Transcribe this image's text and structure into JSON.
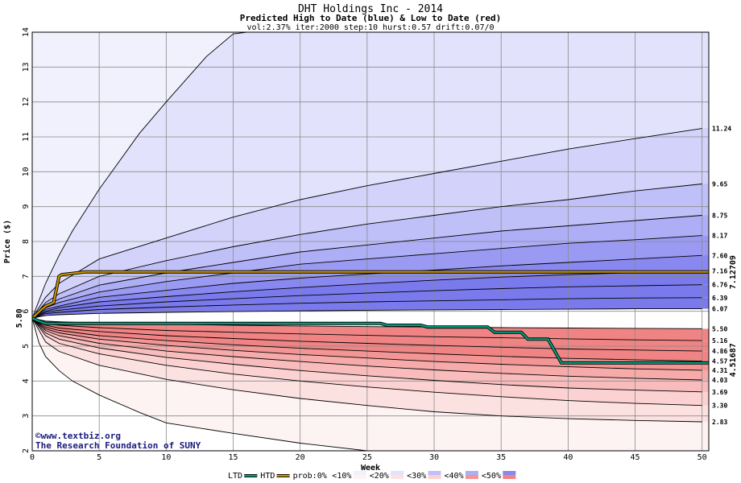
{
  "chart_data": {
    "type": "area",
    "title": "DHT Holdings Inc - 2014",
    "subtitle": "Predicted High to Date (blue) &  Low to Date (red)",
    "params": "vol:2.37% iter:2000 step:10 hurst:0.57 drift:0.07/0",
    "xlabel": "Week",
    "ylabel": "Price ($)",
    "xlim": [
      0,
      50.5
    ],
    "ylim": [
      2,
      14
    ],
    "xticks": [
      0,
      5,
      10,
      15,
      20,
      25,
      30,
      35,
      40,
      45,
      50
    ],
    "yticks": [
      2,
      3,
      4,
      5,
      6,
      7,
      8,
      9,
      10,
      11,
      12,
      13,
      14
    ],
    "start_price_label": "5.80",
    "start_price": 5.8,
    "grid": true,
    "upper_band_colors": [
      "#f1f1fd",
      "#e2e2fc",
      "#d2d2fb",
      "#c0c0f8",
      "#aeaef6",
      "#9a9af3",
      "#8888f0",
      "#7a7aec"
    ],
    "lower_band_colors": [
      "#fdf3f3",
      "#fce1e1",
      "#fbd1d1",
      "#f8bcbc",
      "#f6aaaa",
      "#f39595",
      "#f08484"
    ],
    "quantile_curves_upper": [
      {
        "label": "",
        "x": [
          0,
          1,
          2,
          3,
          5,
          8,
          10,
          13,
          15,
          16
        ],
        "y": [
          5.8,
          6.8,
          7.6,
          8.3,
          9.5,
          11.1,
          12.0,
          13.3,
          13.95,
          14
        ]
      },
      {
        "label": "11.24",
        "x": [
          0,
          1,
          2,
          5,
          10,
          15,
          20,
          25,
          30,
          35,
          40,
          45,
          50
        ],
        "y": [
          5.8,
          6.4,
          6.8,
          7.5,
          8.1,
          8.7,
          9.2,
          9.6,
          9.95,
          10.3,
          10.65,
          10.95,
          11.24
        ]
      },
      {
        "label": "9.65",
        "x": [
          0,
          1,
          2,
          5,
          10,
          15,
          20,
          25,
          30,
          35,
          40,
          45,
          50
        ],
        "y": [
          5.8,
          6.25,
          6.5,
          7.0,
          7.45,
          7.85,
          8.2,
          8.5,
          8.75,
          9.0,
          9.2,
          9.45,
          9.65
        ]
      },
      {
        "label": "8.75",
        "x": [
          0,
          1,
          2,
          5,
          10,
          15,
          20,
          25,
          30,
          35,
          40,
          45,
          50
        ],
        "y": [
          5.8,
          6.15,
          6.35,
          6.75,
          7.1,
          7.4,
          7.7,
          7.9,
          8.1,
          8.3,
          8.45,
          8.6,
          8.75
        ]
      },
      {
        "label": "8.17",
        "x": [
          0,
          1,
          2,
          5,
          10,
          15,
          20,
          25,
          30,
          35,
          40,
          45,
          50
        ],
        "y": [
          5.8,
          6.1,
          6.25,
          6.55,
          6.85,
          7.1,
          7.35,
          7.5,
          7.65,
          7.8,
          7.95,
          8.05,
          8.17
        ]
      },
      {
        "label": "7.60",
        "x": [
          0,
          1,
          2,
          5,
          10,
          15,
          20,
          25,
          30,
          35,
          40,
          45,
          50
        ],
        "y": [
          5.8,
          6.05,
          6.15,
          6.4,
          6.6,
          6.8,
          6.95,
          7.07,
          7.18,
          7.3,
          7.4,
          7.5,
          7.6
        ]
      },
      {
        "label": "7.16",
        "x": [
          0,
          1,
          2,
          5,
          10,
          15,
          20,
          25,
          30,
          35,
          40,
          45,
          50
        ],
        "y": [
          5.8,
          6.0,
          6.1,
          6.27,
          6.42,
          6.56,
          6.68,
          6.79,
          6.89,
          6.98,
          7.05,
          7.11,
          7.16
        ]
      },
      {
        "label": "6.76",
        "x": [
          0,
          1,
          2,
          5,
          10,
          15,
          20,
          25,
          30,
          35,
          40,
          45,
          50
        ],
        "y": [
          5.8,
          5.97,
          6.03,
          6.15,
          6.27,
          6.36,
          6.45,
          6.52,
          6.59,
          6.65,
          6.7,
          6.73,
          6.76
        ]
      },
      {
        "label": "6.39",
        "x": [
          0,
          1,
          2,
          5,
          10,
          15,
          20,
          25,
          30,
          35,
          40,
          45,
          50
        ],
        "y": [
          5.8,
          5.93,
          5.97,
          6.05,
          6.12,
          6.18,
          6.23,
          6.27,
          6.3,
          6.33,
          6.36,
          6.38,
          6.39
        ]
      },
      {
        "label": "6.07",
        "x": [
          0,
          1,
          2,
          5,
          10,
          15,
          20,
          25,
          30,
          35,
          40,
          45,
          50
        ],
        "y": [
          5.8,
          5.88,
          5.9,
          5.94,
          5.97,
          5.99,
          6.01,
          6.03,
          6.04,
          6.05,
          6.06,
          6.07,
          6.07
        ]
      }
    ],
    "quantile_curves_lower": [
      {
        "label": "5.50",
        "x": [
          0,
          1,
          2,
          5,
          10,
          15,
          20,
          25,
          30,
          35,
          40,
          45,
          50
        ],
        "y": [
          5.8,
          5.72,
          5.7,
          5.66,
          5.63,
          5.6,
          5.58,
          5.56,
          5.55,
          5.53,
          5.52,
          5.51,
          5.5
        ]
      },
      {
        "label": "5.16",
        "x": [
          0,
          1,
          2,
          5,
          10,
          15,
          20,
          25,
          30,
          35,
          40,
          45,
          50
        ],
        "y": [
          5.8,
          5.65,
          5.6,
          5.53,
          5.45,
          5.4,
          5.35,
          5.31,
          5.27,
          5.24,
          5.21,
          5.18,
          5.16
        ]
      },
      {
        "label": "4.86",
        "x": [
          0,
          1,
          2,
          5,
          10,
          15,
          20,
          25,
          30,
          35,
          40,
          45,
          50
        ],
        "y": [
          5.8,
          5.6,
          5.52,
          5.42,
          5.3,
          5.22,
          5.14,
          5.08,
          5.02,
          4.97,
          4.92,
          4.89,
          4.86
        ]
      },
      {
        "label": "4.57",
        "x": [
          0,
          1,
          2,
          5,
          10,
          15,
          20,
          25,
          30,
          35,
          40,
          45,
          50
        ],
        "y": [
          5.8,
          5.55,
          5.45,
          5.3,
          5.16,
          5.04,
          4.94,
          4.86,
          4.78,
          4.71,
          4.65,
          4.61,
          4.57
        ]
      },
      {
        "label": "4.31",
        "x": [
          0,
          1,
          2,
          5,
          10,
          15,
          20,
          25,
          30,
          35,
          40,
          45,
          50
        ],
        "y": [
          5.8,
          5.5,
          5.38,
          5.2,
          5.02,
          4.88,
          4.76,
          4.66,
          4.56,
          4.48,
          4.41,
          4.35,
          4.31
        ]
      },
      {
        "label": "4.03",
        "x": [
          0,
          1,
          2,
          5,
          10,
          15,
          20,
          25,
          30,
          35,
          40,
          45,
          50
        ],
        "y": [
          5.8,
          5.45,
          5.3,
          5.08,
          4.86,
          4.7,
          4.56,
          4.43,
          4.32,
          4.22,
          4.14,
          4.08,
          4.03
        ]
      },
      {
        "label": "3.69",
        "x": [
          0,
          1,
          2,
          5,
          10,
          15,
          20,
          25,
          30,
          35,
          40,
          45,
          50
        ],
        "y": [
          5.8,
          5.38,
          5.2,
          4.95,
          4.68,
          4.48,
          4.3,
          4.15,
          4.02,
          3.9,
          3.8,
          3.74,
          3.69
        ]
      },
      {
        "label": "3.30",
        "x": [
          0,
          1,
          2,
          5,
          10,
          15,
          20,
          25,
          30,
          35,
          40,
          45,
          50
        ],
        "y": [
          5.8,
          5.3,
          5.08,
          4.78,
          4.45,
          4.2,
          4.0,
          3.83,
          3.68,
          3.55,
          3.44,
          3.36,
          3.3
        ]
      },
      {
        "label": "2.83",
        "x": [
          0,
          1,
          2,
          5,
          10,
          15,
          20,
          25,
          30,
          35,
          40,
          45,
          50
        ],
        "y": [
          5.8,
          5.12,
          4.85,
          4.45,
          4.05,
          3.75,
          3.5,
          3.3,
          3.12,
          3.0,
          2.92,
          2.87,
          2.83
        ]
      },
      {
        "label": "",
        "x": [
          0,
          0.5,
          1,
          2,
          3,
          5,
          8,
          10,
          15,
          20,
          25
        ],
        "y": [
          5.8,
          5.1,
          4.7,
          4.3,
          4.0,
          3.6,
          3.1,
          2.8,
          2.5,
          2.22,
          2.0
        ]
      }
    ],
    "series": [
      {
        "name": "HTD",
        "color": "#c89600",
        "label": "7.12709",
        "x": [
          0,
          0.7,
          1.0,
          1.6,
          2.0,
          2.2,
          4.0,
          15,
          25,
          35,
          50.5
        ],
        "y": [
          5.8,
          6.05,
          6.15,
          6.25,
          7.0,
          7.05,
          7.13,
          7.13,
          7.13,
          7.13,
          7.13
        ]
      },
      {
        "name": "LTD",
        "color": "#00a080",
        "label": "4.51687",
        "x": [
          0,
          0.5,
          1,
          26,
          26.5,
          29,
          29.5,
          34,
          34.5,
          36.5,
          37,
          38.5,
          39.5,
          50.5
        ],
        "y": [
          5.8,
          5.72,
          5.65,
          5.65,
          5.6,
          5.6,
          5.55,
          5.55,
          5.4,
          5.4,
          5.2,
          5.2,
          4.52,
          4.52
        ]
      }
    ],
    "credit": [
      "©www.textbiz.org",
      "The Research Foundation of SUNY"
    ],
    "legend": {
      "position": "bottom",
      "items": [
        {
          "label": "LTD",
          "kind": "line",
          "color": "#00a080"
        },
        {
          "label": "HTD",
          "kind": "line",
          "color": "#c89600"
        },
        {
          "label": "prob:0%",
          "kind": "text"
        },
        {
          "label": "<10%",
          "kind": "swatch",
          "upper": "#f1f1fd",
          "lower": "#fdf3f3"
        },
        {
          "label": "<20%",
          "kind": "swatch",
          "upper": "#e2e2fc",
          "lower": "#fce1e1"
        },
        {
          "label": "<30%",
          "kind": "swatch",
          "upper": "#c0c0f8",
          "lower": "#fbd1d1"
        },
        {
          "label": "<40%",
          "kind": "swatch",
          "upper": "#aeaef6",
          "lower": "#f39595"
        },
        {
          "label": "<50%",
          "kind": "swatch",
          "upper": "#8888f0",
          "lower": "#f08484"
        }
      ]
    }
  }
}
